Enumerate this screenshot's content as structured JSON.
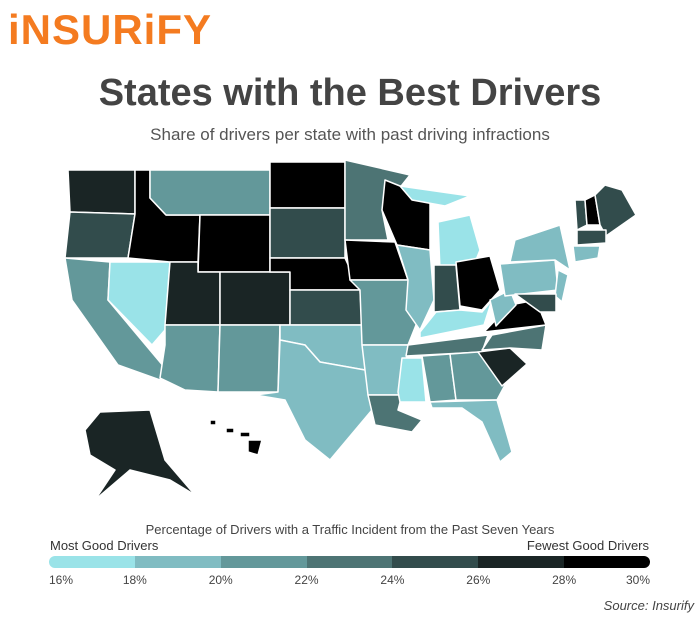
{
  "logo": "iNSURiFY",
  "title": "States with the Best Drivers",
  "subtitle": "Share of drivers per state with past driving infractions",
  "legend": {
    "title": "Percentage of Drivers with a Traffic Incident from the Past Seven Years",
    "left_label": "Most Good Drivers",
    "right_label": "Fewest Good Drivers",
    "ticks": [
      "16%",
      "18%",
      "20%",
      "22%",
      "24%",
      "26%",
      "28%",
      "30%"
    ],
    "bins": [
      {
        "range": "16-18%",
        "color": "#9ae3e8"
      },
      {
        "range": "18-20%",
        "color": "#80bcc2"
      },
      {
        "range": "20-22%",
        "color": "#63989a"
      },
      {
        "range": "22-24%",
        "color": "#4d7474"
      },
      {
        "range": "24-26%",
        "color": "#324c4c"
      },
      {
        "range": "26-28%",
        "color": "#1a2525"
      },
      {
        "range": "28-30%",
        "color": "#000000"
      }
    ]
  },
  "source": "Source: Insurify",
  "states": {
    "WA": "26-28%",
    "OR": "24-26%",
    "CA": "20-22%",
    "NV": "16-18%",
    "ID": "28-30%",
    "MT": "20-22%",
    "WY": "28-30%",
    "UT": "26-28%",
    "CO": "26-28%",
    "AZ": "20-22%",
    "NM": "20-22%",
    "ND": "28-30%",
    "SD": "24-26%",
    "NE": "28-30%",
    "KS": "24-26%",
    "OK": "18-20%",
    "TX": "18-20%",
    "MN": "22-24%",
    "IA": "28-30%",
    "MO": "20-22%",
    "AR": "18-20%",
    "LA": "22-24%",
    "WI": "28-30%",
    "IL": "18-20%",
    "MI": "16-18%",
    "IN": "24-26%",
    "OH": "28-30%",
    "KY": "16-18%",
    "TN": "22-24%",
    "MS": "16-18%",
    "AL": "20-22%",
    "GA": "20-22%",
    "FL": "18-20%",
    "SC": "26-28%",
    "NC": "22-24%",
    "VA": "28-30%",
    "WV": "18-20%",
    "PA": "18-20%",
    "NY": "18-20%",
    "NJ": "18-20%",
    "MD": "24-26%",
    "VT": "24-26%",
    "NH": "28-30%",
    "ME": "24-26%",
    "MA": "24-26%",
    "CT": "18-20%",
    "AK": "26-28%",
    "HI": "28-30%"
  }
}
